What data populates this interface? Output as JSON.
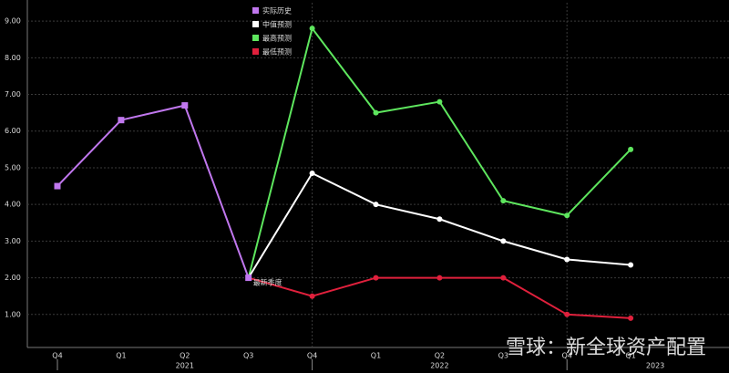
{
  "chart_data": {
    "type": "line",
    "categories": [
      "Q4",
      "Q1",
      "Q2",
      "Q3",
      "Q4",
      "Q1",
      "Q2",
      "Q3",
      "Q4",
      "Q1"
    ],
    "years": [
      "2021",
      "2022",
      "2023"
    ],
    "series": [
      {
        "name": "实际历史",
        "color": "#c077ee",
        "marker": "square",
        "values": [
          4.5,
          6.3,
          6.7,
          2.0,
          null,
          null,
          null,
          null,
          null,
          null
        ]
      },
      {
        "name": "中值预测",
        "color": "#ffffff",
        "marker": "circle",
        "values": [
          null,
          null,
          null,
          2.0,
          4.85,
          4.0,
          3.6,
          3.0,
          2.5,
          2.35
        ]
      },
      {
        "name": "最高预测",
        "color": "#5ee65e",
        "marker": "circle",
        "values": [
          null,
          null,
          null,
          2.0,
          8.8,
          6.5,
          6.8,
          4.1,
          3.7,
          5.5
        ]
      },
      {
        "name": "最低预测",
        "color": "#e0203c",
        "marker": "circle",
        "values": [
          null,
          null,
          null,
          2.0,
          1.5,
          2.0,
          2.0,
          2.0,
          1.0,
          0.9
        ]
      }
    ],
    "annotation": "最新季度",
    "watermark": "雪球：新全球资产配置",
    "ylim": [
      0.1,
      9.5
    ],
    "yticks": [
      {
        "value": 1,
        "label": "1.00"
      },
      {
        "value": 2,
        "label": "2.00"
      },
      {
        "value": 3,
        "label": "3.00"
      },
      {
        "value": 4,
        "label": "4.00"
      },
      {
        "value": 5,
        "label": "5.00"
      },
      {
        "value": 6,
        "label": "6.00"
      },
      {
        "value": 7,
        "label": "7.00"
      },
      {
        "value": 8,
        "label": "8.00"
      },
      {
        "value": 9,
        "label": "9.00"
      }
    ],
    "grid": true,
    "legend": "top"
  }
}
